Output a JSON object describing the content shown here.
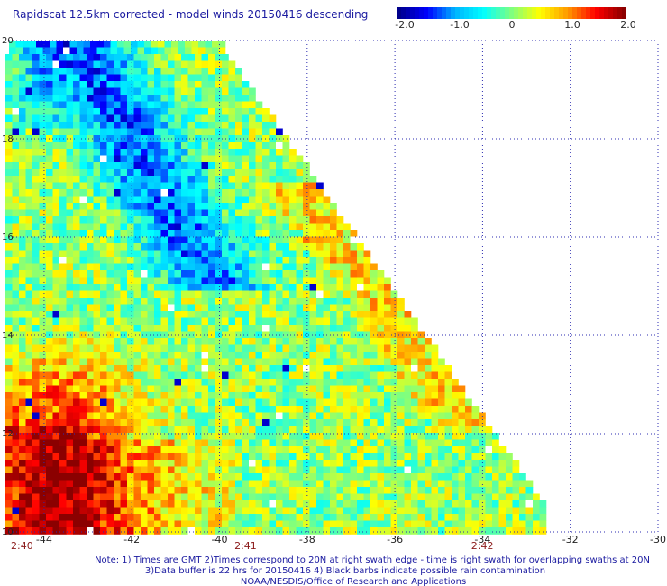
{
  "title": "Rapidscat 12.5km corrected - model winds 20150416 descending",
  "colorbar": {
    "labels": [
      "-2.0",
      "-1.0",
      "0",
      "1.0",
      "2.0"
    ],
    "values": [
      -2,
      -1,
      0,
      1,
      2
    ],
    "colors": [
      "#00008b",
      "#0000ff",
      "#00b4ff",
      "#00ffff",
      "#7fff7f",
      "#ffff00",
      "#ff9900",
      "#ff0000",
      "#8b0000"
    ]
  },
  "axes": {
    "lon_ticks": [
      "-44",
      "-42",
      "-40",
      "-38",
      "-36",
      "-34",
      "-32",
      "-30"
    ],
    "lon_values": [
      -44,
      -42,
      -40,
      -38,
      -36,
      -34,
      -32,
      -30
    ],
    "lat_ticks": [
      "20",
      "18",
      "16",
      "14",
      "12",
      "10"
    ],
    "lat_values": [
      20,
      18,
      16,
      14,
      12,
      10
    ],
    "time_ticks": [
      "2:40",
      "2:41",
      "2:42"
    ],
    "time_lons": [
      -44.8,
      -39.7,
      -34.3
    ],
    "lon_range": [
      -44.8,
      -30
    ],
    "lat_range": [
      10,
      20
    ],
    "grid": "dotted"
  },
  "notes": {
    "line1": "Note: 1) Times are GMT 2)Times correspond to 20N at right swath edge - time is right swath for overlapping swaths at 20N",
    "line2": "3)Data buffer is 22 hrs for 20150416 4) Black barbs indicate possible rain contamination",
    "line3": "NOAA/NESDIS/Office of Research and Applications"
  }
}
